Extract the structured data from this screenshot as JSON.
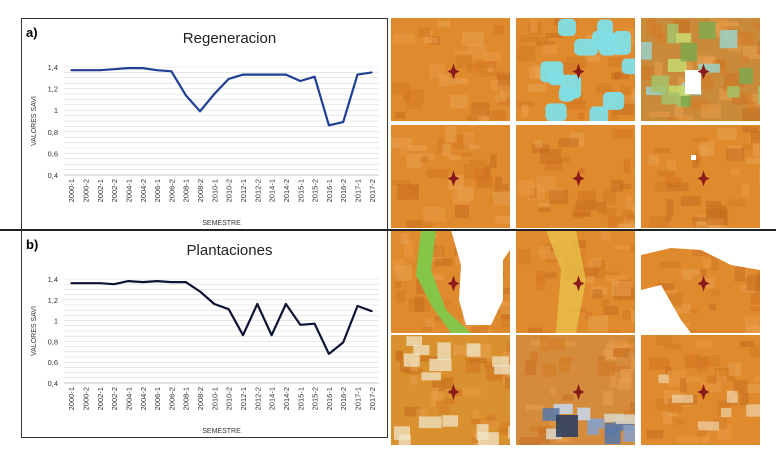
{
  "figure": {
    "panel_a_label": "a)",
    "panel_b_label": "b)"
  },
  "chart_data": [
    {
      "type": "line",
      "title": "Regeneracion",
      "xlabel": "SEMESTRE",
      "ylabel": "VALORES SAVI",
      "ylim": [
        0.4,
        1.4
      ],
      "ytick_labels": [
        "0,4",
        "0,6",
        "0,8",
        "1",
        "1,2",
        "1,4"
      ],
      "grid": true,
      "categories": [
        "2000-1",
        "2000-2",
        "2002-1",
        "2002-2",
        "2004-1",
        "2004-2",
        "2006-1",
        "2006-2",
        "2008-1",
        "2008-2",
        "2010-1",
        "2010-2",
        "2012-1",
        "2012-2",
        "2014-1",
        "2014-2",
        "2015-1",
        "2015-2",
        "2016-1",
        "2016-2",
        "2017-1",
        "2017-2"
      ],
      "series": [
        {
          "name": "Regeneracion",
          "color": "#1f3f95",
          "values": [
            1.37,
            1.37,
            1.37,
            1.38,
            1.39,
            1.39,
            1.37,
            1.36,
            1.14,
            0.99,
            1.15,
            1.29,
            1.33,
            1.33,
            1.33,
            1.33,
            1.27,
            1.31,
            0.86,
            0.89,
            1.33,
            1.35
          ]
        }
      ]
    },
    {
      "type": "line",
      "title": "Plantaciones",
      "xlabel": "SEMESTRE",
      "ylabel": "VALORES SAVI",
      "ylim": [
        0.4,
        1.4
      ],
      "ytick_labels": [
        "0,4",
        "0,6",
        "0,8",
        "1",
        "1,2",
        "1,4"
      ],
      "grid": true,
      "categories": [
        "2000-1",
        "2000-2",
        "2002-1",
        "2002-2",
        "2004-1",
        "2004-2",
        "2006-1",
        "2006-2",
        "2008-1",
        "2008-2",
        "2010-1",
        "2010-2",
        "2012-1",
        "2012-2",
        "2014-1",
        "2014-2",
        "2015-1",
        "2015-2",
        "2016-1",
        "2016-2",
        "2017-1",
        "2017-2"
      ],
      "series": [
        {
          "name": "Plantaciones",
          "color": "#0d1433",
          "values": [
            1.36,
            1.36,
            1.36,
            1.35,
            1.38,
            1.37,
            1.38,
            1.37,
            1.37,
            1.28,
            1.16,
            1.11,
            0.86,
            1.16,
            0.86,
            1.16,
            0.96,
            0.97,
            0.68,
            0.79,
            1.14,
            1.09
          ]
        }
      ]
    }
  ],
  "imagery": {
    "tiles": [
      {
        "name": "tile-a-1-1",
        "base": "#e08a2e",
        "cloud": "none"
      },
      {
        "name": "tile-a-1-2",
        "base": "#e08a2e",
        "cloud": "cyan"
      },
      {
        "name": "tile-a-1-3",
        "base": "#c98a3a",
        "cloud": "mixed"
      },
      {
        "name": "tile-a-2-1",
        "base": "#e08a2e",
        "cloud": "none"
      },
      {
        "name": "tile-a-2-2",
        "base": "#e08a2e",
        "cloud": "none"
      },
      {
        "name": "tile-a-2-3",
        "base": "#e08a2e",
        "cloud": "speck"
      },
      {
        "name": "tile-b-1-1",
        "base": "#e08a2e",
        "cloud": "green-white"
      },
      {
        "name": "tile-b-1-2",
        "base": "#e08a2e",
        "cloud": "yellow"
      },
      {
        "name": "tile-b-1-3",
        "base": "#e08a2e",
        "cloud": "white"
      },
      {
        "name": "tile-b-2-1",
        "base": "#d9902e",
        "cloud": "haze"
      },
      {
        "name": "tile-b-2-2",
        "base": "#d48c3c",
        "cloud": "blue"
      },
      {
        "name": "tile-b-2-3",
        "base": "#e08a2e",
        "cloud": "haze-light"
      }
    ],
    "marker_color": "#8b1a1a",
    "divider_color": "#222222"
  }
}
